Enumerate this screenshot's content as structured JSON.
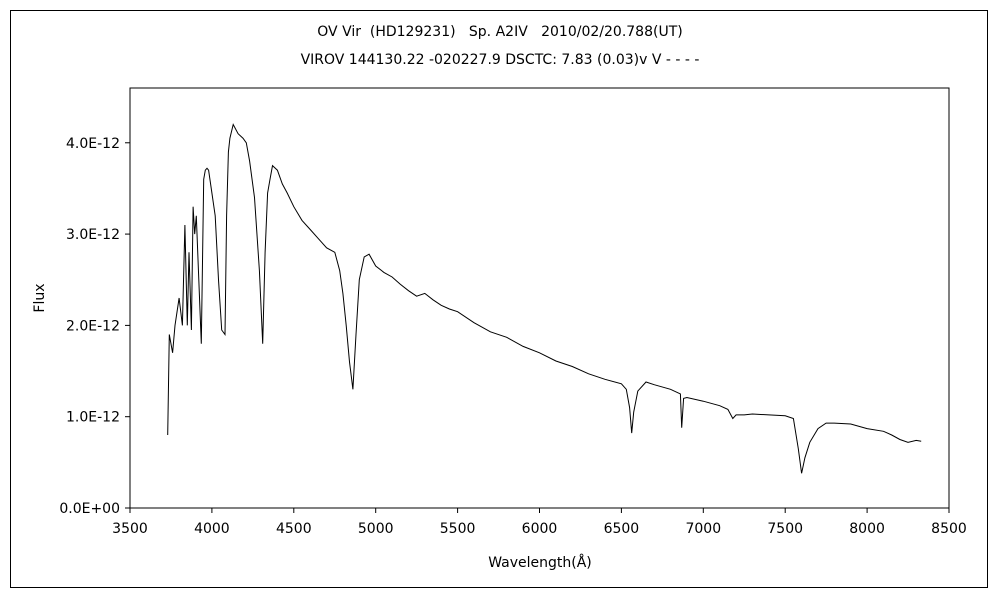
{
  "chart_data": {
    "type": "line",
    "title_line1": "OV Vir  (HD129231)   Sp. A2IV   2010/02/20.788(UT)",
    "title_line2": "VIROV 144130.22 -020227.9 DSCTC: 7.83 (0.03)v V - - - -",
    "xlabel": "Wavelength(Å)",
    "ylabel": "Flux",
    "xlim": [
      3500,
      8500
    ],
    "ylim": [
      0,
      4.6e-12
    ],
    "x_ticks": [
      3500,
      4000,
      4500,
      5000,
      5500,
      6000,
      6500,
      7000,
      7500,
      8000,
      8500
    ],
    "x_tick_labels": [
      "3500",
      "4000",
      "4500",
      "5000",
      "5500",
      "6000",
      "6500",
      "7000",
      "7500",
      "8000",
      "8500"
    ],
    "y_ticks": [
      0,
      1e-12,
      2e-12,
      3e-12,
      4e-12
    ],
    "y_tick_labels": [
      "0.0E+00",
      "1.0E-12",
      "2.0E-12",
      "3.0E-12",
      "4.0E-12"
    ],
    "grid": false,
    "line_color": "#000000",
    "series": [
      {
        "x": [
          3730,
          3740,
          3760,
          3775,
          3800,
          3820,
          3835,
          3850,
          3860,
          3875,
          3885,
          3895,
          3905,
          3920,
          3935,
          3950,
          3960,
          3970,
          3980,
          4000,
          4020,
          4040,
          4060,
          4080,
          4090,
          4101,
          4110,
          4130,
          4160,
          4190,
          4210,
          4230,
          4260,
          4290,
          4310,
          4325,
          4340,
          4355,
          4370,
          4400,
          4430,
          4460,
          4500,
          4550,
          4600,
          4650,
          4700,
          4750,
          4780,
          4800,
          4820,
          4840,
          4861,
          4880,
          4900,
          4930,
          4960,
          5000,
          5050,
          5100,
          5150,
          5200,
          5250,
          5300,
          5350,
          5400,
          5450,
          5500,
          5600,
          5700,
          5800,
          5900,
          6000,
          6100,
          6200,
          6300,
          6400,
          6500,
          6530,
          6550,
          6563,
          6575,
          6600,
          6650,
          6700,
          6800,
          6860,
          6868,
          6880,
          6900,
          7000,
          7100,
          7150,
          7180,
          7200,
          7250,
          7300,
          7400,
          7500,
          7550,
          7580,
          7600,
          7620,
          7650,
          7700,
          7750,
          7800,
          7900,
          8000,
          8100,
          8150,
          8200,
          8250,
          8300,
          8330
        ],
        "y": [
          8e-13,
          1.9e-12,
          1.7e-12,
          2e-12,
          2.3e-12,
          2e-12,
          3.1e-12,
          2e-12,
          2.8e-12,
          1.95e-12,
          3.3e-12,
          3e-12,
          3.2e-12,
          2.5e-12,
          1.8e-12,
          3.6e-12,
          3.7e-12,
          3.72e-12,
          3.7e-12,
          3.45e-12,
          3.2e-12,
          2.5e-12,
          1.95e-12,
          1.9e-12,
          3.2e-12,
          3.9e-12,
          4.05e-12,
          4.2e-12,
          4.1e-12,
          4.05e-12,
          4e-12,
          3.8e-12,
          3.4e-12,
          2.6e-12,
          1.8e-12,
          2.8e-12,
          3.45e-12,
          3.6e-12,
          3.75e-12,
          3.7e-12,
          3.55e-12,
          3.45e-12,
          3.3e-12,
          3.15e-12,
          3.05e-12,
          2.95e-12,
          2.85e-12,
          2.8e-12,
          2.6e-12,
          2.35e-12,
          2e-12,
          1.6e-12,
          1.3e-12,
          1.9e-12,
          2.5e-12,
          2.75e-12,
          2.78e-12,
          2.65e-12,
          2.58e-12,
          2.53e-12,
          2.45e-12,
          2.38e-12,
          2.32e-12,
          2.35e-12,
          2.28e-12,
          2.22e-12,
          2.18e-12,
          2.15e-12,
          2.03e-12,
          1.93e-12,
          1.87e-12,
          1.77e-12,
          1.7e-12,
          1.61e-12,
          1.55e-12,
          1.47e-12,
          1.41e-12,
          1.36e-12,
          1.3e-12,
          1.1e-12,
          8.2e-13,
          1.05e-12,
          1.28e-12,
          1.38e-12,
          1.35e-12,
          1.3e-12,
          1.25e-12,
          8.8e-13,
          1.2e-12,
          1.21e-12,
          1.17e-12,
          1.12e-12,
          1.08e-12,
          9.8e-13,
          1.02e-12,
          1.02e-12,
          1.03e-12,
          1.02e-12,
          1.01e-12,
          9.8e-13,
          6.5e-13,
          3.8e-13,
          5.5e-13,
          7.2e-13,
          8.7e-13,
          9.3e-13,
          9.3e-13,
          9.2e-13,
          8.7e-13,
          8.4e-13,
          8e-13,
          7.5e-13,
          7.2e-13,
          7.4e-13,
          7.3e-13
        ]
      }
    ]
  }
}
